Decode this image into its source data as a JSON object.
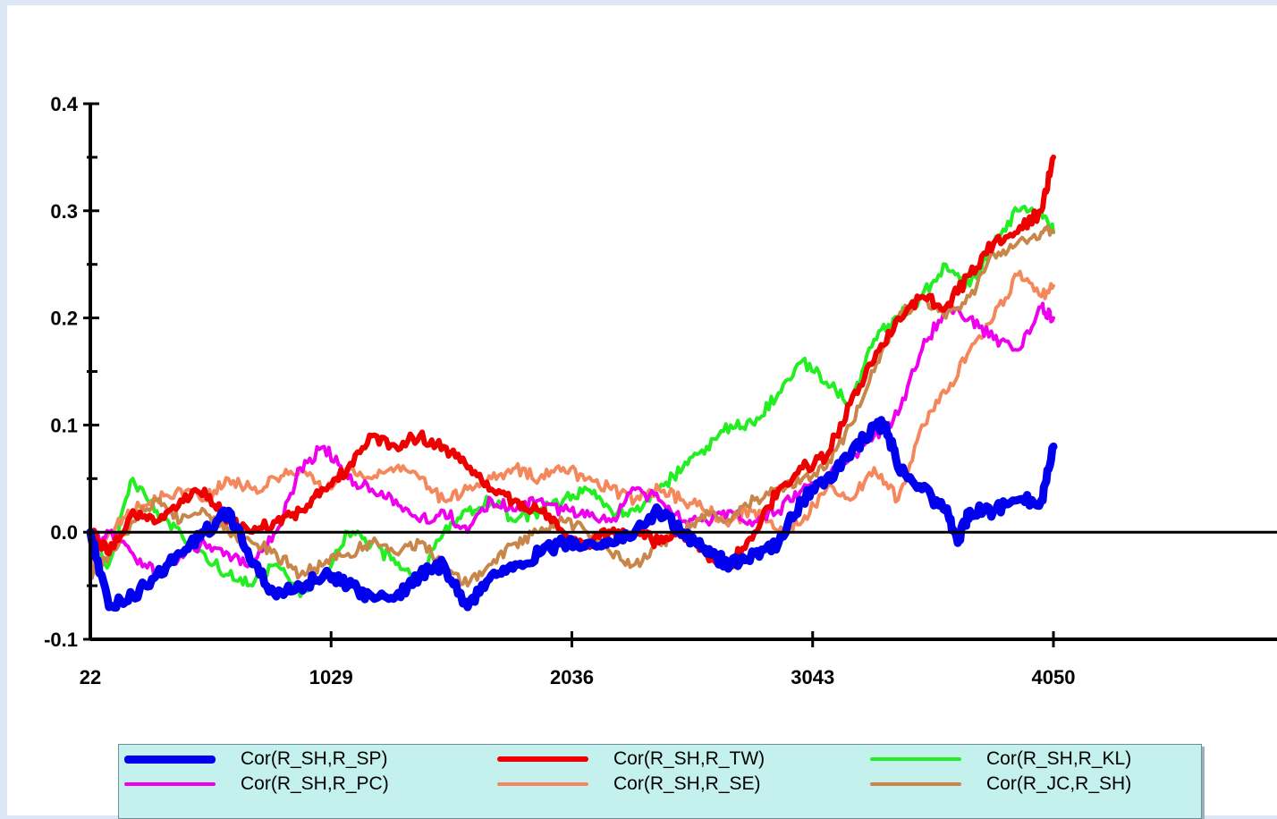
{
  "chart_data": {
    "type": "line",
    "title": "",
    "xlabel": "",
    "ylabel": "",
    "xlim": [
      22,
      5000
    ],
    "ylim": [
      -0.1,
      0.4
    ],
    "x_ticks": [
      22,
      1029,
      2036,
      3043,
      4050
    ],
    "x_tick_labels": [
      "22",
      "1029",
      "2036",
      "3043",
      "4050"
    ],
    "y_ticks": [
      -0.1,
      0.0,
      0.1,
      0.2,
      0.3,
      0.4
    ],
    "y_tick_labels": [
      "-0.1",
      "0.0",
      "0.1",
      "0.2",
      "0.3",
      "0.4"
    ],
    "zero_line": true,
    "grid": false,
    "legend_position": "bottom",
    "series": [
      {
        "name": "Cor(R_SH,R_SP)",
        "color": "#0000ee",
        "x": [
          22,
          100,
          200,
          300,
          400,
          500,
          600,
          700,
          800,
          900,
          1000,
          1100,
          1200,
          1300,
          1400,
          1500,
          1600,
          1700,
          1800,
          1900,
          2000,
          2100,
          2200,
          2300,
          2400,
          2500,
          2600,
          2700,
          2800,
          2900,
          3000,
          3100,
          3200,
          3300,
          3350,
          3400,
          3500,
          3600,
          3650,
          3700,
          3800,
          3900,
          4000,
          4050
        ],
        "y": [
          0.0,
          -0.07,
          -0.06,
          -0.04,
          -0.02,
          0.0,
          0.02,
          -0.03,
          -0.06,
          -0.05,
          -0.04,
          -0.05,
          -0.06,
          -0.06,
          -0.04,
          -0.03,
          -0.07,
          -0.04,
          -0.03,
          -0.02,
          -0.01,
          -0.01,
          -0.01,
          0.0,
          0.02,
          0.0,
          -0.02,
          -0.03,
          -0.02,
          -0.01,
          0.03,
          0.05,
          0.07,
          0.1,
          0.1,
          0.06,
          0.04,
          0.02,
          -0.01,
          0.02,
          0.02,
          0.03,
          0.03,
          0.08
        ]
      },
      {
        "name": "Cor(R_SH,R_TW)",
        "color": "#ee0000",
        "x": [
          22,
          100,
          200,
          300,
          400,
          500,
          600,
          700,
          800,
          900,
          1000,
          1100,
          1200,
          1300,
          1400,
          1500,
          1600,
          1700,
          1800,
          1900,
          2000,
          2100,
          2200,
          2300,
          2400,
          2500,
          2600,
          2700,
          2800,
          2900,
          3000,
          3100,
          3200,
          3300,
          3400,
          3500,
          3600,
          3700,
          3800,
          3900,
          4000,
          4050
        ],
        "y": [
          0.0,
          -0.02,
          0.02,
          0.01,
          0.03,
          0.04,
          0.01,
          0.0,
          0.01,
          0.02,
          0.04,
          0.06,
          0.09,
          0.08,
          0.09,
          0.08,
          0.06,
          0.04,
          0.03,
          0.02,
          0.0,
          -0.01,
          0.0,
          0.0,
          -0.01,
          0.0,
          -0.02,
          -0.03,
          0.0,
          0.04,
          0.06,
          0.07,
          0.12,
          0.16,
          0.2,
          0.22,
          0.21,
          0.24,
          0.27,
          0.28,
          0.3,
          0.35
        ]
      },
      {
        "name": "Cor(R_SH,R_KL)",
        "color": "#22ee22",
        "x": [
          22,
          100,
          200,
          300,
          400,
          500,
          600,
          700,
          800,
          900,
          1000,
          1100,
          1200,
          1300,
          1400,
          1500,
          1600,
          1700,
          1800,
          1900,
          2000,
          2100,
          2200,
          2300,
          2400,
          2500,
          2600,
          2700,
          2800,
          2900,
          3000,
          3100,
          3200,
          3300,
          3400,
          3500,
          3600,
          3700,
          3800,
          3900,
          4000,
          4050
        ],
        "y": [
          -0.01,
          -0.03,
          0.05,
          0.02,
          0.0,
          -0.02,
          -0.04,
          -0.05,
          -0.03,
          -0.06,
          -0.04,
          0.0,
          -0.01,
          -0.03,
          -0.04,
          0.0,
          0.02,
          0.03,
          0.01,
          0.02,
          0.03,
          0.04,
          0.02,
          0.02,
          0.04,
          0.06,
          0.08,
          0.1,
          0.1,
          0.13,
          0.16,
          0.14,
          0.12,
          0.18,
          0.2,
          0.22,
          0.25,
          0.23,
          0.27,
          0.3,
          0.3,
          0.28
        ]
      },
      {
        "name": "Cor(R_SH,R_PC)",
        "color": "#ee00ee",
        "x": [
          22,
          100,
          200,
          300,
          400,
          500,
          600,
          700,
          800,
          900,
          1000,
          1100,
          1200,
          1300,
          1400,
          1500,
          1600,
          1700,
          1800,
          1900,
          2000,
          2100,
          2200,
          2300,
          2400,
          2500,
          2600,
          2700,
          2800,
          2900,
          3000,
          3100,
          3200,
          3300,
          3400,
          3500,
          3600,
          3700,
          3800,
          3900,
          4000,
          4050
        ],
        "y": [
          -0.01,
          0.0,
          -0.02,
          -0.04,
          -0.02,
          -0.01,
          -0.02,
          -0.03,
          0.0,
          0.06,
          0.08,
          0.05,
          0.04,
          0.03,
          0.01,
          0.02,
          0.0,
          0.03,
          0.02,
          0.03,
          0.02,
          0.02,
          0.01,
          0.04,
          0.03,
          0.01,
          0.01,
          0.02,
          0.01,
          0.02,
          0.04,
          0.05,
          0.07,
          0.09,
          0.11,
          0.17,
          0.21,
          0.2,
          0.18,
          0.17,
          0.21,
          0.2
        ]
      },
      {
        "name": "Cor(R_SH,R_SE)",
        "color": "#f4885c",
        "x": [
          22,
          100,
          200,
          300,
          400,
          500,
          600,
          700,
          800,
          900,
          1000,
          1100,
          1200,
          1300,
          1400,
          1500,
          1600,
          1700,
          1800,
          1900,
          2000,
          2100,
          2200,
          2300,
          2400,
          2500,
          2600,
          2700,
          2800,
          2900,
          3000,
          3100,
          3200,
          3300,
          3400,
          3500,
          3600,
          3700,
          3800,
          3900,
          4000,
          4050
        ],
        "y": [
          -0.03,
          0.0,
          0.02,
          0.03,
          0.04,
          0.03,
          0.05,
          0.04,
          0.05,
          0.06,
          0.04,
          0.06,
          0.05,
          0.06,
          0.05,
          0.03,
          0.04,
          0.05,
          0.06,
          0.05,
          0.06,
          0.05,
          0.04,
          0.03,
          0.04,
          0.03,
          0.02,
          0.01,
          0.02,
          0.0,
          0.01,
          0.04,
          0.03,
          0.06,
          0.03,
          0.1,
          0.13,
          0.17,
          0.2,
          0.24,
          0.22,
          0.23
        ]
      },
      {
        "name": "Cor(R_JC,R_SH)",
        "color": "#c8864a",
        "x": [
          22,
          100,
          200,
          300,
          400,
          500,
          600,
          700,
          800,
          900,
          1000,
          1100,
          1200,
          1300,
          1400,
          1500,
          1600,
          1700,
          1800,
          1900,
          2000,
          2100,
          2200,
          2300,
          2400,
          2500,
          2600,
          2700,
          2800,
          2900,
          3000,
          3100,
          3200,
          3300,
          3400,
          3500,
          3600,
          3700,
          3800,
          3900,
          4000,
          4050
        ],
        "y": [
          -0.04,
          -0.02,
          0.01,
          0.03,
          0.01,
          0.02,
          0.0,
          -0.01,
          -0.02,
          -0.04,
          -0.03,
          -0.02,
          -0.01,
          -0.02,
          -0.01,
          -0.03,
          -0.05,
          -0.03,
          -0.01,
          0.0,
          0.01,
          0.0,
          -0.02,
          -0.03,
          -0.01,
          0.0,
          0.02,
          0.01,
          0.03,
          0.04,
          0.05,
          0.06,
          0.1,
          0.15,
          0.2,
          0.22,
          0.2,
          0.22,
          0.26,
          0.27,
          0.28,
          0.28
        ]
      }
    ]
  }
}
